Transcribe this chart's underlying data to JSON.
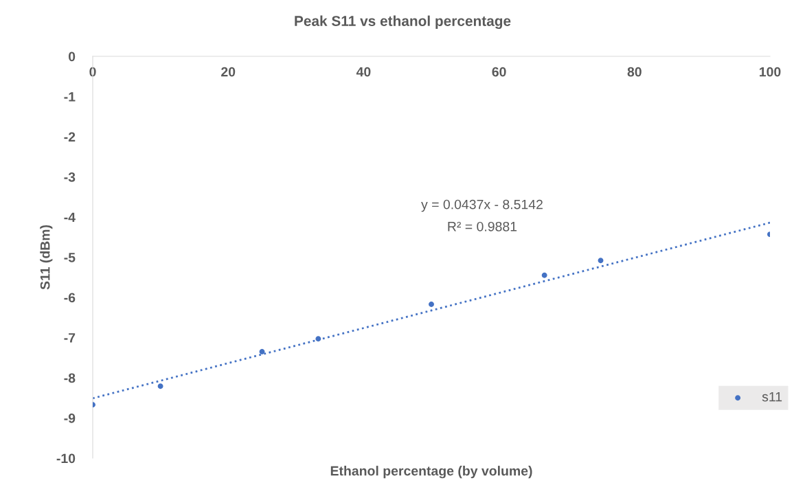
{
  "chart_data": {
    "type": "scatter",
    "title": "Peak S11 vs ethanol percentage",
    "xlabel": "Ethanol percentage (by volume)",
    "ylabel": "S11 (dBm)",
    "series": [
      {
        "name": "s11",
        "marker": "circle",
        "color": "#4472c4",
        "x": [
          0,
          10,
          25,
          33.3,
          50,
          66.7,
          75,
          100
        ],
        "values": [
          -8.67,
          -8.21,
          -7.35,
          -7.03,
          -6.17,
          -5.45,
          -5.08,
          -4.43
        ]
      },
      {
        "type": "line",
        "marker": "none",
        "color": "#4472c4",
        "line_style": "dotted",
        "x": [
          0,
          100
        ],
        "values": [
          -8.51,
          -4.14
        ]
      }
    ],
    "annotations": [
      "y = 0.0437x - 8.5142",
      "R² = 0.9881"
    ],
    "xlim": [
      0,
      100
    ],
    "xticks": [
      0,
      20,
      40,
      60,
      80,
      100
    ],
    "ylim": [
      -10,
      0
    ],
    "yticks": [
      0,
      -1,
      -2,
      -3,
      -4,
      -5,
      -6,
      -7,
      -8,
      -9,
      -10
    ],
    "grid": false,
    "legend": "right"
  }
}
